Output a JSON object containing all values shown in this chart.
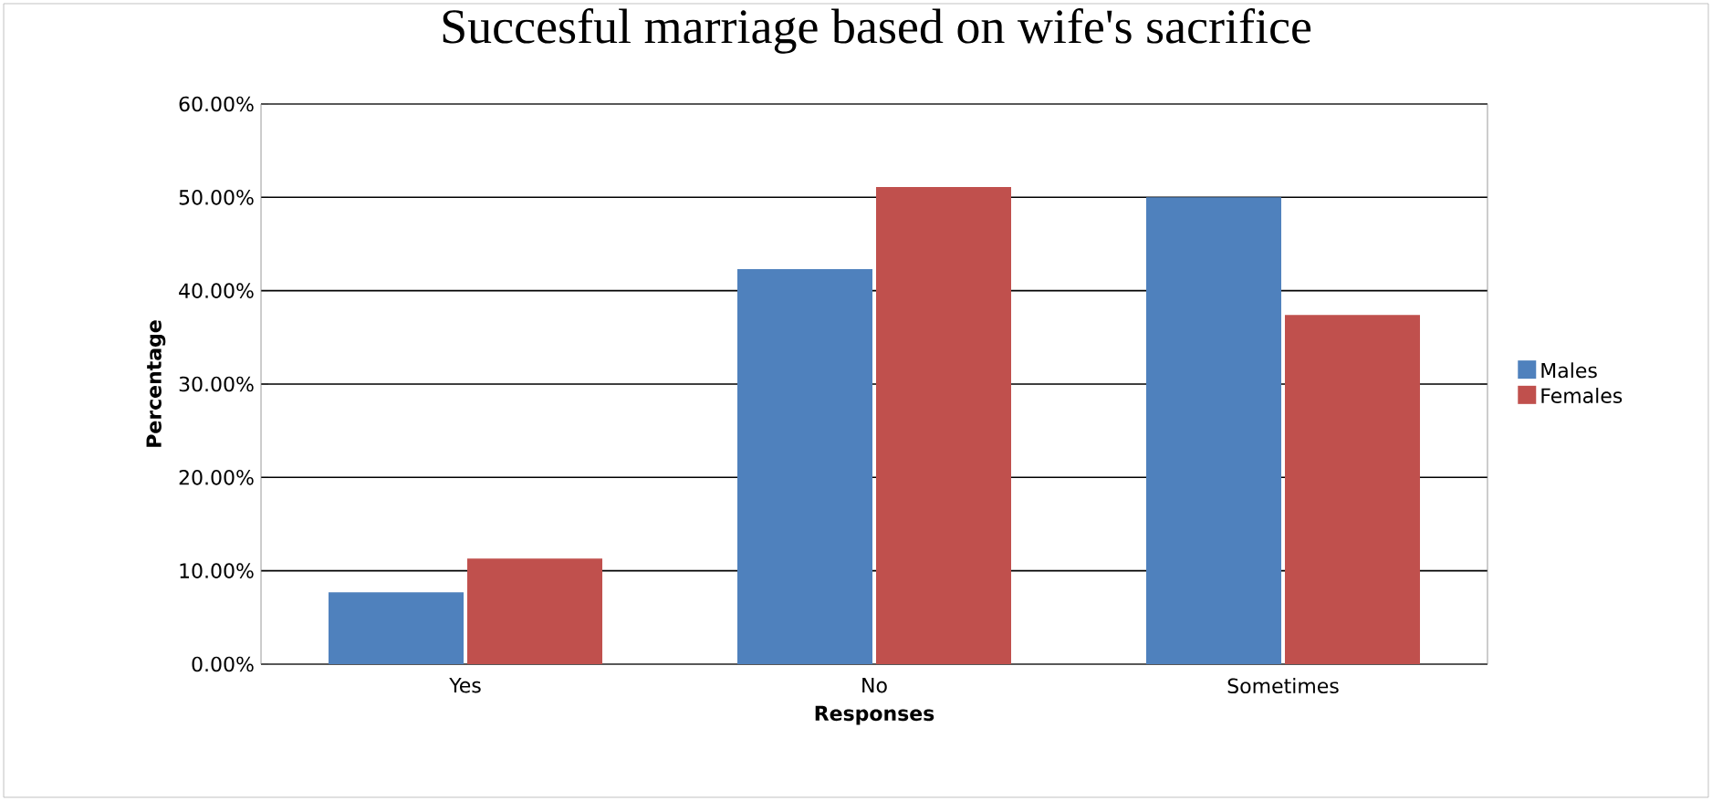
{
  "chart_data": {
    "type": "bar",
    "title": "Succesful marriage based on wife's sacrifice",
    "xlabel": "Responses",
    "ylabel": "Percentage",
    "categories": [
      "Yes",
      "No",
      "Sometimes"
    ],
    "series": [
      {
        "name": "Males",
        "color": "#4f81bd",
        "values": [
          7.7,
          42.3,
          50.0
        ]
      },
      {
        "name": "Females",
        "color": "#c0504d",
        "values": [
          11.3,
          51.1,
          37.4
        ]
      }
    ],
    "ylim": [
      0,
      60
    ],
    "yticks": [
      {
        "value": 0,
        "label": "0.00%"
      },
      {
        "value": 10,
        "label": "10.00%"
      },
      {
        "value": 20,
        "label": "20.00%"
      },
      {
        "value": 30,
        "label": "30.00%"
      },
      {
        "value": 40,
        "label": "40.00%"
      },
      {
        "value": 50,
        "label": "50.00%"
      },
      {
        "value": 60,
        "label": "60.00%"
      }
    ],
    "grid": "y",
    "legend": "right"
  }
}
